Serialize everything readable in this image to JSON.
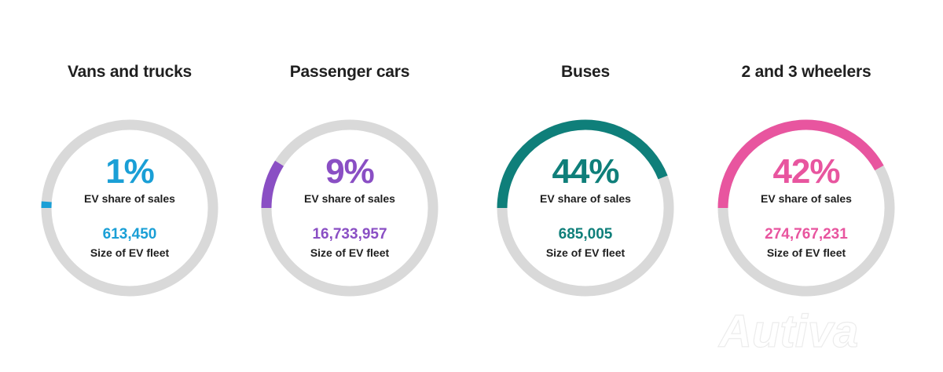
{
  "chart_data": [
    {
      "type": "pie",
      "title": "Vans and trucks",
      "value_label": "1%",
      "share_pct": 1,
      "share_text": "EV share of sales",
      "fleet_value": "613,450",
      "fleet_text": "Size of EV fleet",
      "color": "#1a9fd6"
    },
    {
      "type": "pie",
      "title": "Passenger cars",
      "value_label": "9%",
      "share_pct": 9,
      "share_text": "EV share of sales",
      "fleet_value": "16,733,957",
      "fleet_text": "Size of EV fleet",
      "color": "#8a4fc4"
    },
    {
      "type": "pie",
      "title": "Buses",
      "value_label": "44%",
      "share_pct": 44,
      "share_text": "EV share of sales",
      "fleet_value": "685,005",
      "fleet_text": "Size of EV fleet",
      "color": "#0f7f7a"
    },
    {
      "type": "pie",
      "title": "2 and 3 wheelers",
      "value_label": "42%",
      "share_pct": 42,
      "share_text": "EV share of sales",
      "fleet_value": "274,767,231",
      "fleet_text": "Size of EV fleet",
      "color": "#e8559f"
    }
  ],
  "track_color": "#d9d9d9",
  "watermark_text": "Autiva"
}
